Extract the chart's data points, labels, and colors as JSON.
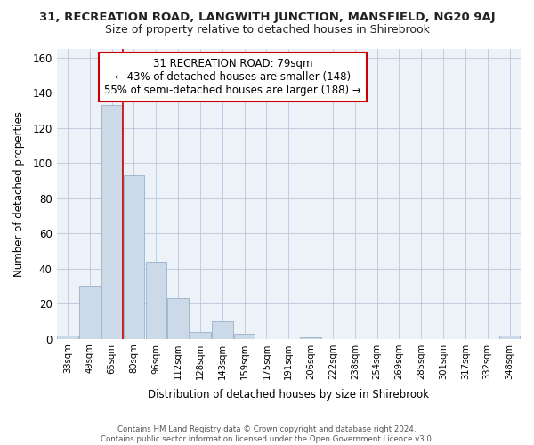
{
  "title": "31, RECREATION ROAD, LANGWITH JUNCTION, MANSFIELD, NG20 9AJ",
  "subtitle": "Size of property relative to detached houses in Shirebrook",
  "xlabel": "Distribution of detached houses by size in Shirebrook",
  "ylabel": "Number of detached properties",
  "bar_color": "#ccd9e8",
  "bar_edge_color": "#9ab0c8",
  "categories": [
    "33sqm",
    "49sqm",
    "65sqm",
    "80sqm",
    "96sqm",
    "112sqm",
    "128sqm",
    "143sqm",
    "159sqm",
    "175sqm",
    "191sqm",
    "206sqm",
    "222sqm",
    "238sqm",
    "254sqm",
    "269sqm",
    "285sqm",
    "301sqm",
    "317sqm",
    "332sqm",
    "348sqm"
  ],
  "values": [
    2,
    30,
    133,
    93,
    44,
    23,
    4,
    10,
    3,
    0,
    0,
    1,
    0,
    0,
    0,
    0,
    0,
    0,
    0,
    0,
    2
  ],
  "annotation_line1": "31 RECREATION ROAD: 79sqm",
  "annotation_line2": "← 43% of detached houses are smaller (148)",
  "annotation_line3": "55% of semi-detached houses are larger (188) →",
  "ylim": [
    0,
    165
  ],
  "yticks": [
    0,
    20,
    40,
    60,
    80,
    100,
    120,
    140,
    160
  ],
  "footer_line1": "Contains HM Land Registry data © Crown copyright and database right 2024.",
  "footer_line2": "Contains public sector information licensed under the Open Government Licence v3.0.",
  "vline_color": "#cc0000",
  "annotation_box_edge_color": "#cc0000",
  "background_color": "#ffffff",
  "plot_bg_color": "#edf2f8",
  "grid_color": "#b8c8d8",
  "vline_x": 2.5
}
